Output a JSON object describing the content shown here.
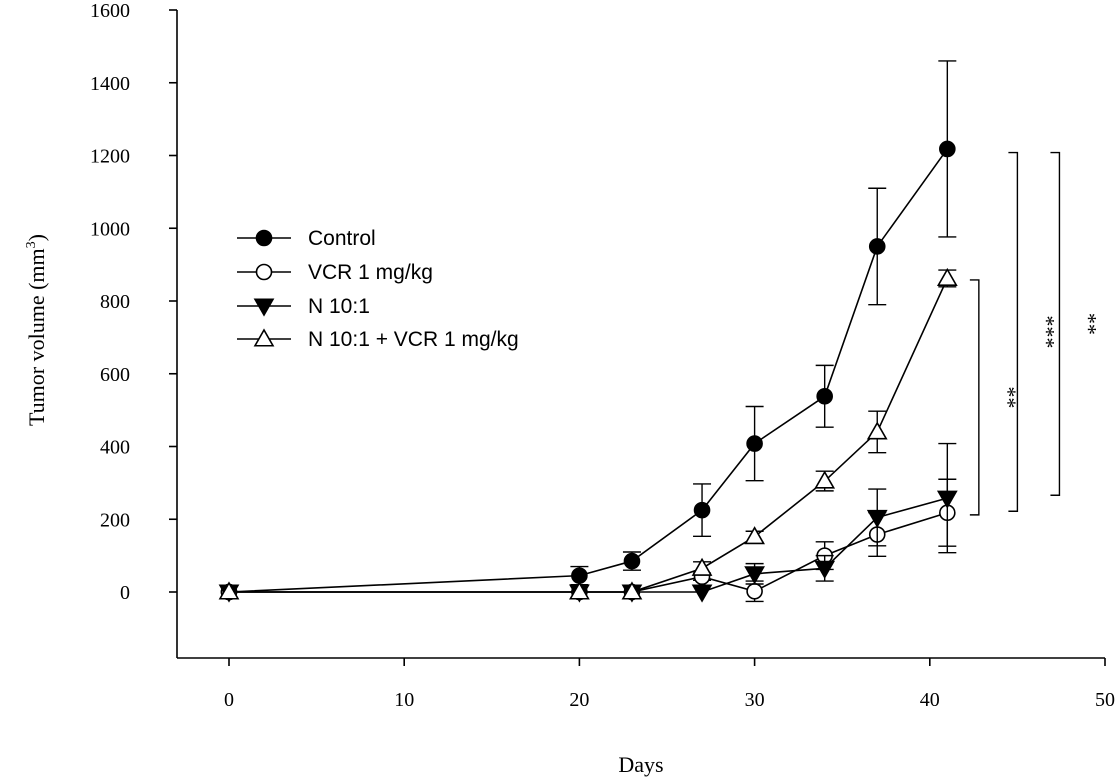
{
  "chart_data": {
    "type": "line",
    "xlabel": "Days",
    "ylabel": "Tumor volume (mm",
    "ylabel_sup": "3",
    "ylabel_close": ")",
    "xlim": [
      -3,
      50
    ],
    "ylim": [
      -180,
      1600
    ],
    "xticks": [
      0,
      10,
      20,
      30,
      40,
      50
    ],
    "xtick_labels": [
      "0",
      "10",
      "20",
      "30",
      "40",
      "50"
    ],
    "yticks": [
      0,
      200,
      400,
      600,
      800,
      1000,
      1200,
      1400,
      1600
    ],
    "ytick_labels": [
      "0",
      "200",
      "400",
      "600",
      "800",
      "1000",
      "1200",
      "1400",
      "1600"
    ],
    "legend_position": "center-left",
    "series": [
      {
        "name": "Control",
        "marker": "filled-circle",
        "x": [
          0,
          20,
          23,
          27,
          30,
          34,
          37,
          41
        ],
        "y": [
          0,
          45,
          85,
          225,
          408,
          538,
          950,
          1218
        ],
        "err": [
          0,
          25,
          25,
          72,
          102,
          85,
          160,
          242
        ]
      },
      {
        "name": "VCR 1 mg/kg",
        "marker": "open-circle",
        "x": [
          0,
          20,
          23,
          27,
          30,
          34,
          37,
          41
        ],
        "y": [
          0,
          0,
          0,
          42,
          2,
          100,
          158,
          218
        ],
        "err": [
          0,
          0,
          0,
          10,
          28,
          38,
          60,
          92
        ]
      },
      {
        "name": "N 10:1",
        "marker": "filled-triangle-down",
        "x": [
          0,
          20,
          23,
          27,
          30,
          34,
          37,
          41
        ],
        "y": [
          0,
          0,
          0,
          0,
          50,
          65,
          205,
          258
        ],
        "err": [
          0,
          0,
          0,
          0,
          28,
          35,
          78,
          150
        ]
      },
      {
        "name": "N 10:1 + VCR 1 mg/kg",
        "marker": "open-triangle-up",
        "x": [
          0,
          20,
          23,
          27,
          30,
          34,
          37,
          41
        ],
        "y": [
          0,
          0,
          0,
          65,
          152,
          305,
          440,
          862
        ],
        "err": [
          0,
          0,
          0,
          18,
          15,
          27,
          57,
          23
        ]
      }
    ],
    "significance": [
      {
        "label": "**",
        "x": 42.8,
        "y_low": 212,
        "y_high": 858
      },
      {
        "label": "***",
        "x": 45.0,
        "y_low": 222,
        "y_high": 1208
      },
      {
        "label": "**",
        "x": 47.4,
        "y_low": 266,
        "y_high": 1208
      }
    ]
  }
}
